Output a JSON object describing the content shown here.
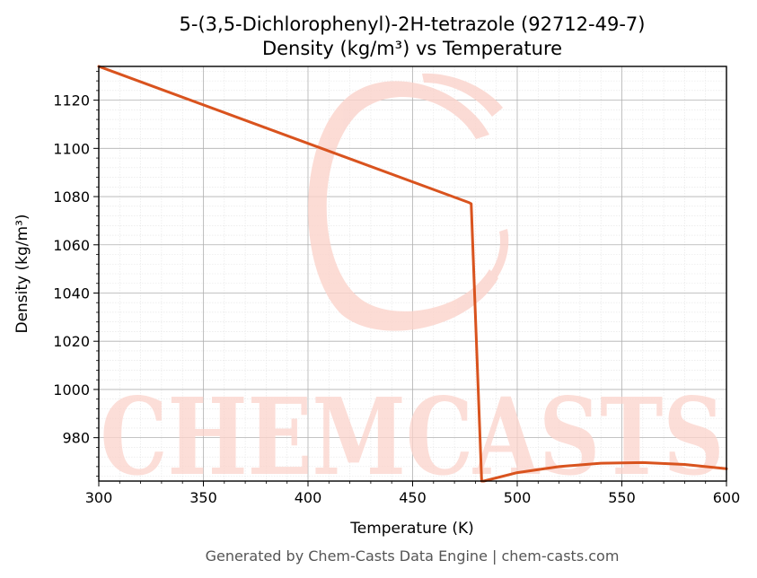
{
  "chart_data": {
    "type": "line",
    "title": "5-(3,5-Dichlorophenyl)-2H-tetrazole (92712-49-7)",
    "subtitle": "Density (kg/m³) vs Temperature",
    "xlabel": "Temperature (K)",
    "ylabel": "Density (kg/m³)",
    "xlim": [
      300,
      600
    ],
    "ylim": [
      962,
      1134
    ],
    "xticks": [
      300,
      350,
      400,
      450,
      500,
      550,
      600
    ],
    "yticks": [
      980,
      1000,
      1020,
      1040,
      1060,
      1080,
      1100,
      1120
    ],
    "grid": true,
    "series": [
      {
        "color": "#d9531e",
        "x": [
          300,
          477,
          478,
          483,
          484,
          500,
          520,
          540,
          560,
          580,
          600
        ],
        "y": [
          1134,
          1077.5,
          1077,
          962,
          962,
          965.5,
          968,
          969.4,
          969.7,
          968.9,
          967.1
        ]
      }
    ]
  },
  "watermark": {
    "text": "CHEMCASTS"
  },
  "footer": "Generated by Chem-Casts Data Engine | chem-casts.com"
}
